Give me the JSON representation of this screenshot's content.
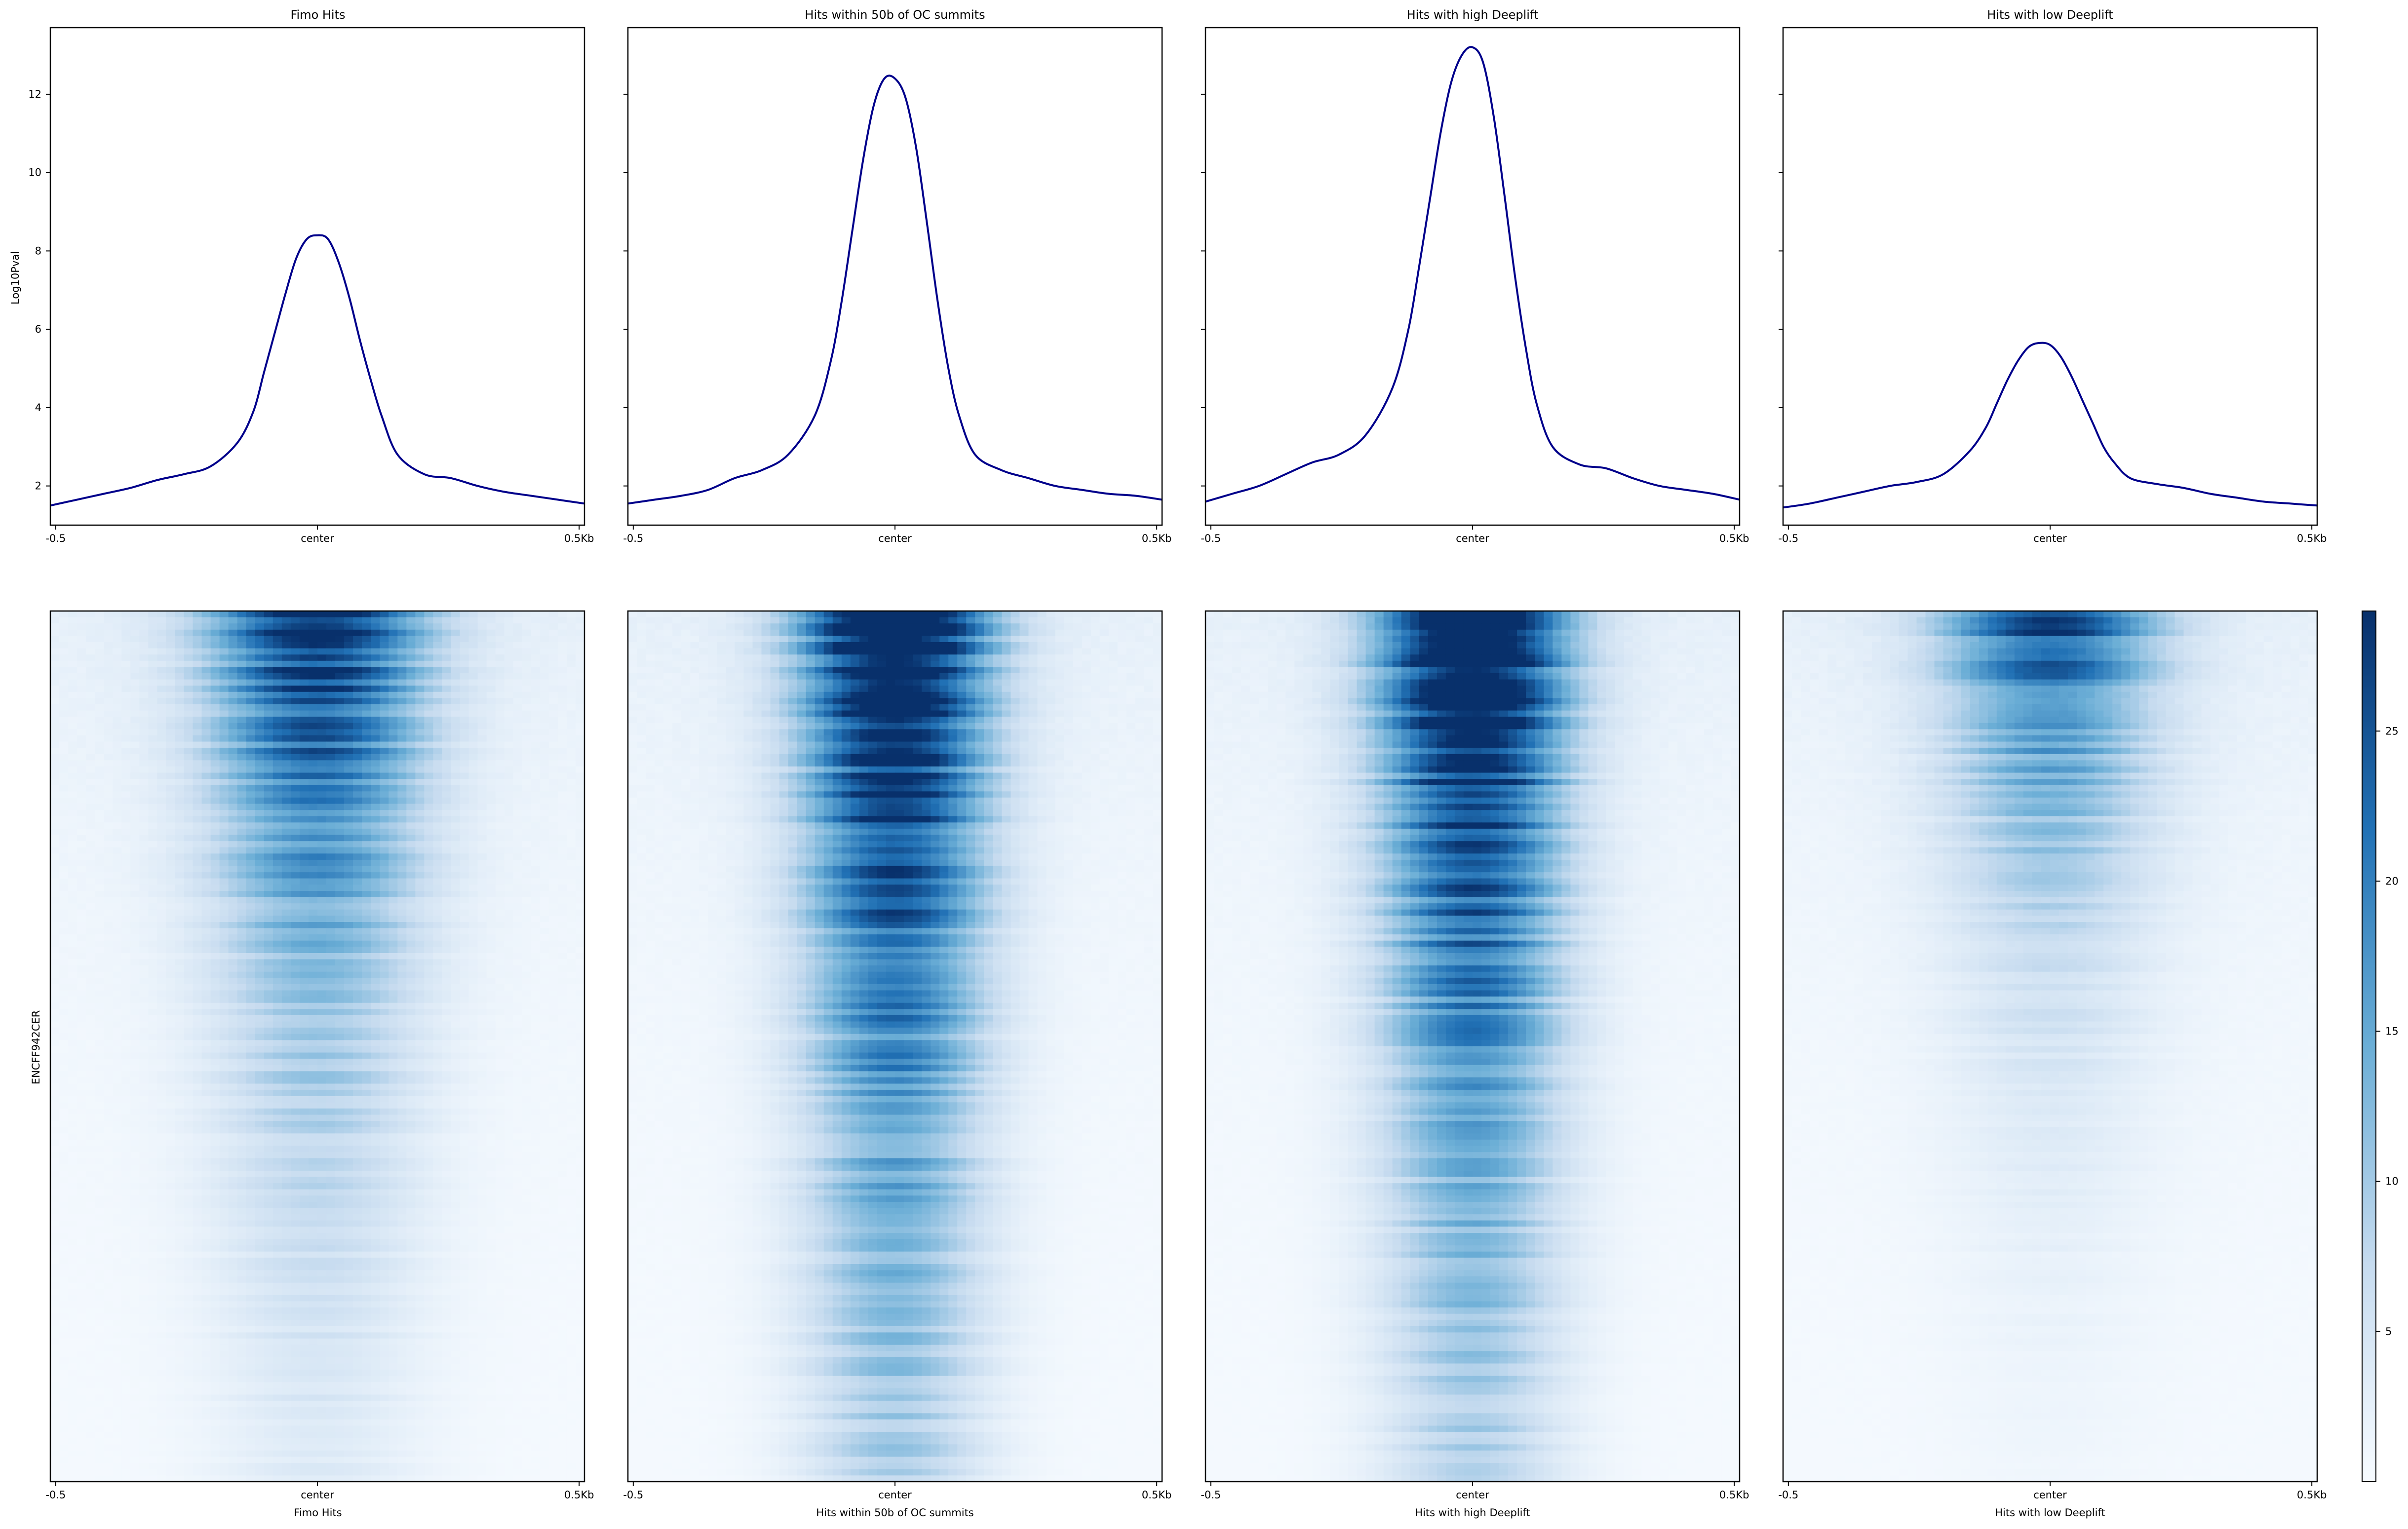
{
  "chart_data": [
    {
      "type": "line",
      "title": "Fimo Hits",
      "ylabel": "Log10Pval",
      "xlabel": "",
      "x_ticks": [
        "-0.5",
        "center",
        "0.5Kb"
      ],
      "ylim": [
        1.0,
        13.7
      ],
      "y_ticks": [
        2,
        4,
        6,
        8,
        10,
        12
      ],
      "line_color": "#00008b",
      "series": [
        {
          "x": [
            -0.5,
            -0.45,
            -0.4,
            -0.35,
            -0.3,
            -0.25,
            -0.2,
            -0.15,
            -0.12,
            -0.1,
            -0.08,
            -0.06,
            -0.04,
            -0.02,
            0.0,
            0.02,
            0.04,
            0.06,
            0.08,
            0.1,
            0.12,
            0.15,
            0.2,
            0.25,
            0.3,
            0.35,
            0.4,
            0.45,
            0.5
          ],
          "y": [
            1.5,
            1.65,
            1.8,
            1.95,
            2.15,
            2.3,
            2.5,
            3.1,
            3.9,
            4.9,
            5.9,
            6.9,
            7.8,
            8.3,
            8.4,
            8.3,
            7.7,
            6.8,
            5.7,
            4.7,
            3.8,
            2.8,
            2.3,
            2.2,
            2.0,
            1.85,
            1.75,
            1.65,
            1.55
          ]
        }
      ]
    },
    {
      "type": "line",
      "title": "Hits within 50b of OC summits",
      "ylabel": "",
      "xlabel": "",
      "x_ticks": [
        "-0.5",
        "center",
        "0.5Kb"
      ],
      "ylim": [
        1.0,
        13.7
      ],
      "line_color": "#00008b",
      "series": [
        {
          "x": [
            -0.5,
            -0.45,
            -0.4,
            -0.35,
            -0.3,
            -0.25,
            -0.2,
            -0.15,
            -0.12,
            -0.1,
            -0.08,
            -0.06,
            -0.04,
            -0.02,
            0.0,
            0.02,
            0.04,
            0.06,
            0.08,
            0.1,
            0.12,
            0.15,
            0.2,
            0.25,
            0.3,
            0.35,
            0.4,
            0.45,
            0.5
          ],
          "y": [
            1.55,
            1.65,
            1.75,
            1.9,
            2.2,
            2.4,
            2.8,
            3.8,
            5.2,
            6.7,
            8.5,
            10.3,
            11.7,
            12.4,
            12.4,
            11.9,
            10.6,
            8.7,
            6.7,
            5.0,
            3.8,
            2.8,
            2.4,
            2.2,
            2.0,
            1.9,
            1.8,
            1.75,
            1.65
          ]
        }
      ]
    },
    {
      "type": "line",
      "title": "Hits with high Deeplift",
      "ylabel": "",
      "xlabel": "",
      "x_ticks": [
        "-0.5",
        "center",
        "0.5Kb"
      ],
      "ylim": [
        1.0,
        13.7
      ],
      "line_color": "#00008b",
      "series": [
        {
          "x": [
            -0.5,
            -0.45,
            -0.4,
            -0.35,
            -0.3,
            -0.25,
            -0.2,
            -0.15,
            -0.12,
            -0.1,
            -0.08,
            -0.06,
            -0.04,
            -0.02,
            0.0,
            0.02,
            0.04,
            0.06,
            0.08,
            0.1,
            0.12,
            0.15,
            0.2,
            0.25,
            0.3,
            0.35,
            0.4,
            0.45,
            0.5
          ],
          "y": [
            1.6,
            1.8,
            2.0,
            2.3,
            2.6,
            2.8,
            3.3,
            4.5,
            6.0,
            7.6,
            9.3,
            11.0,
            12.3,
            13.0,
            13.2,
            12.8,
            11.4,
            9.4,
            7.3,
            5.5,
            4.1,
            3.0,
            2.55,
            2.45,
            2.2,
            2.0,
            1.9,
            1.8,
            1.65
          ]
        }
      ]
    },
    {
      "type": "line",
      "title": "Hits with low Deeplift",
      "ylabel": "",
      "xlabel": "",
      "x_ticks": [
        "-0.5",
        "center",
        "0.5Kb"
      ],
      "ylim": [
        1.0,
        13.7
      ],
      "line_color": "#00008b",
      "series": [
        {
          "x": [
            -0.5,
            -0.45,
            -0.4,
            -0.35,
            -0.3,
            -0.25,
            -0.2,
            -0.15,
            -0.12,
            -0.1,
            -0.08,
            -0.06,
            -0.04,
            -0.02,
            0.0,
            0.02,
            0.04,
            0.06,
            0.08,
            0.1,
            0.12,
            0.15,
            0.2,
            0.25,
            0.3,
            0.35,
            0.4,
            0.45,
            0.5
          ],
          "y": [
            1.45,
            1.55,
            1.7,
            1.85,
            2.0,
            2.1,
            2.3,
            2.9,
            3.5,
            4.1,
            4.7,
            5.2,
            5.55,
            5.65,
            5.6,
            5.3,
            4.8,
            4.2,
            3.6,
            3.0,
            2.6,
            2.2,
            2.05,
            1.95,
            1.8,
            1.7,
            1.6,
            1.55,
            1.5
          ]
        }
      ]
    },
    {
      "type": "heatmap",
      "title": "",
      "ylabel": "ENCFF942CER",
      "xlabel": "Fimo Hits",
      "x_ticks": [
        "-0.5",
        "center",
        "0.5Kb"
      ],
      "peak": 1.0,
      "width": 0.14,
      "decay": 0.45
    },
    {
      "type": "heatmap",
      "title": "",
      "ylabel": "",
      "xlabel": "Hits within 50b of OC summits",
      "x_ticks": [
        "-0.5",
        "center",
        "0.5Kb"
      ],
      "peak": 1.25,
      "width": 0.12,
      "decay": 0.7
    },
    {
      "type": "heatmap",
      "title": "",
      "ylabel": "",
      "xlabel": "Hits with high Deeplift",
      "x_ticks": [
        "-0.5",
        "center",
        "0.5Kb"
      ],
      "peak": 1.3,
      "width": 0.12,
      "decay": 0.65
    },
    {
      "type": "heatmap",
      "title": "",
      "ylabel": "",
      "xlabel": "Hits with low Deeplift",
      "x_ticks": [
        "-0.5",
        "center",
        "0.5Kb"
      ],
      "peak": 0.85,
      "width": 0.14,
      "decay": 0.28
    }
  ],
  "colorbar": {
    "range": [
      0,
      29
    ],
    "ticks": [
      5,
      10,
      15,
      20,
      25
    ],
    "color_low": "#f7fbff",
    "color_high": "#08306b",
    "colormap": "Blues"
  }
}
